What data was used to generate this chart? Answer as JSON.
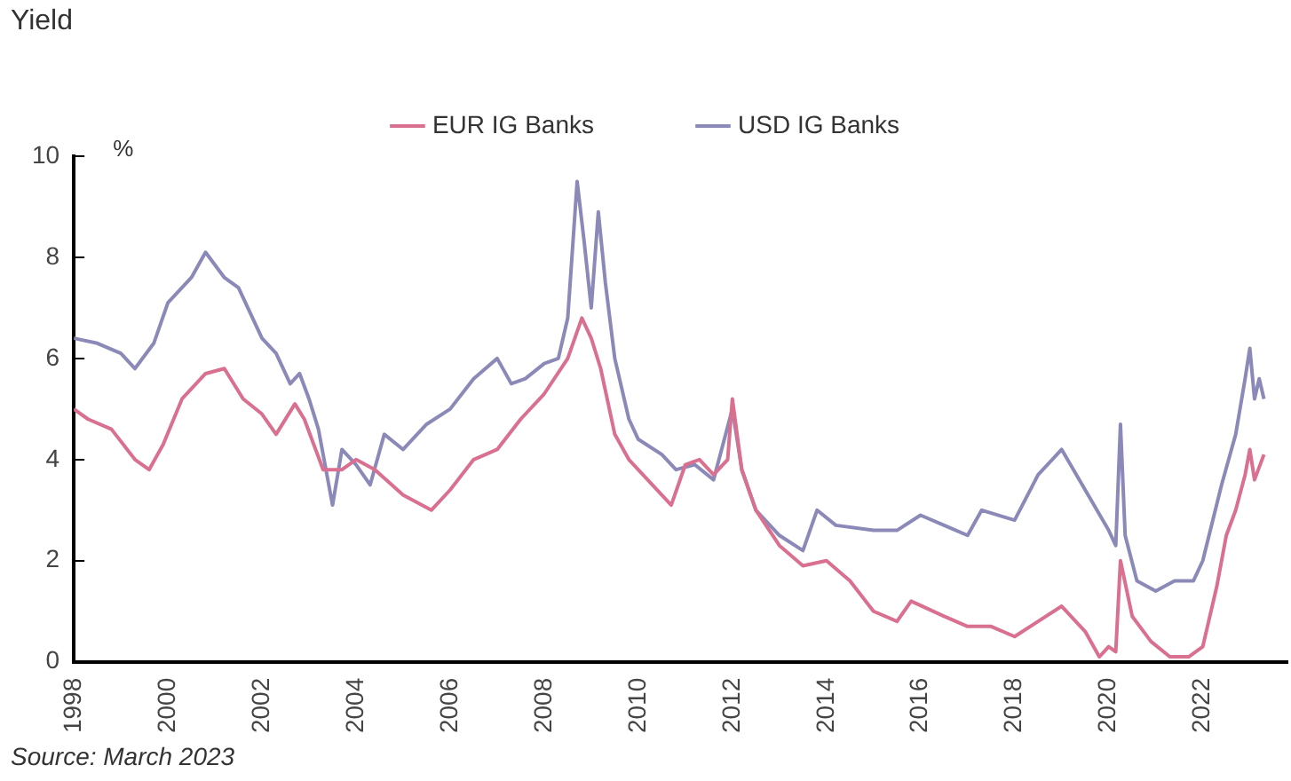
{
  "chart_data": {
    "type": "line",
    "ylabel": "Yield",
    "annotations": [
      "%",
      "Source: March 2023"
    ],
    "xlim": [
      1998,
      2023.8
    ],
    "xticks": [
      1998,
      2000,
      2002,
      2004,
      2006,
      2008,
      2010,
      2012,
      2014,
      2016,
      2018,
      2020,
      2022
    ],
    "ylim": [
      0,
      10
    ],
    "yticks": [
      0,
      2,
      4,
      6,
      8,
      10
    ],
    "grid": false,
    "legend": "top",
    "marker": "none",
    "line_style": "solid",
    "series": [
      {
        "name": "EUR IG Banks",
        "color": "#d9708f",
        "x": [
          1998.0,
          1998.3,
          1998.8,
          1999.3,
          1999.6,
          1999.9,
          2000.3,
          2000.8,
          2001.2,
          2001.6,
          2002.0,
          2002.3,
          2002.7,
          2002.9,
          2003.3,
          2003.7,
          2004.0,
          2004.4,
          2005.0,
          2005.6,
          2006.0,
          2006.5,
          2007.0,
          2007.5,
          2008.0,
          2008.5,
          2008.8,
          2009.0,
          2009.2,
          2009.5,
          2009.8,
          2010.3,
          2010.7,
          2011.0,
          2011.3,
          2011.6,
          2011.9,
          2012.0,
          2012.2,
          2012.5,
          2013.0,
          2013.5,
          2014.0,
          2014.5,
          2015.0,
          2015.5,
          2015.8,
          2016.5,
          2017.0,
          2017.5,
          2018.0,
          2018.5,
          2019.0,
          2019.5,
          2019.8,
          2020.0,
          2020.15,
          2020.25,
          2020.5,
          2020.9,
          2021.3,
          2021.7,
          2022.0,
          2022.3,
          2022.5,
          2022.7,
          2022.9,
          2023.0,
          2023.1,
          2023.3
        ],
        "values": [
          5.0,
          4.8,
          4.6,
          4.0,
          3.8,
          4.3,
          5.2,
          5.7,
          5.8,
          5.2,
          4.9,
          4.5,
          5.1,
          4.8,
          3.8,
          3.8,
          4.0,
          3.8,
          3.3,
          3.0,
          3.4,
          4.0,
          4.2,
          4.8,
          5.3,
          6.0,
          6.8,
          6.4,
          5.8,
          4.5,
          4.0,
          3.5,
          3.1,
          3.9,
          4.0,
          3.7,
          4.0,
          5.2,
          3.8,
          3.0,
          2.3,
          1.9,
          2.0,
          1.6,
          1.0,
          0.8,
          1.2,
          0.9,
          0.7,
          0.7,
          0.5,
          0.8,
          1.1,
          0.6,
          0.1,
          0.3,
          0.2,
          2.0,
          0.9,
          0.4,
          0.1,
          0.1,
          0.3,
          1.5,
          2.5,
          3.0,
          3.7,
          4.2,
          3.6,
          4.1
        ]
      },
      {
        "name": "USD IG Banks",
        "color": "#8b89b8",
        "x": [
          1998.0,
          1998.5,
          1999.0,
          1999.3,
          1999.7,
          2000.0,
          2000.5,
          2000.8,
          2001.2,
          2001.5,
          2002.0,
          2002.3,
          2002.6,
          2002.8,
          2003.0,
          2003.2,
          2003.5,
          2003.7,
          2004.0,
          2004.3,
          2004.6,
          2005.0,
          2005.5,
          2006.0,
          2006.5,
          2007.0,
          2007.3,
          2007.6,
          2008.0,
          2008.3,
          2008.5,
          2008.7,
          2008.85,
          2009.0,
          2009.15,
          2009.3,
          2009.5,
          2009.8,
          2010.0,
          2010.5,
          2010.8,
          2011.2,
          2011.6,
          2012.0,
          2012.2,
          2012.5,
          2013.0,
          2013.5,
          2013.8,
          2014.2,
          2015.0,
          2015.5,
          2016.0,
          2016.5,
          2017.0,
          2017.3,
          2018.0,
          2018.5,
          2019.0,
          2019.5,
          2020.0,
          2020.15,
          2020.25,
          2020.35,
          2020.6,
          2021.0,
          2021.4,
          2021.8,
          2022.0,
          2022.4,
          2022.7,
          2022.9,
          2023.0,
          2023.1,
          2023.2,
          2023.3
        ],
        "values": [
          6.4,
          6.3,
          6.1,
          5.8,
          6.3,
          7.1,
          7.6,
          8.1,
          7.6,
          7.4,
          6.4,
          6.1,
          5.5,
          5.7,
          5.2,
          4.6,
          3.1,
          4.2,
          3.9,
          3.5,
          4.5,
          4.2,
          4.7,
          5.0,
          5.6,
          6.0,
          5.5,
          5.6,
          5.9,
          6.0,
          6.8,
          9.5,
          8.3,
          7.0,
          8.9,
          7.5,
          6.0,
          4.8,
          4.4,
          4.1,
          3.8,
          3.9,
          3.6,
          5.0,
          3.8,
          3.0,
          2.5,
          2.2,
          3.0,
          2.7,
          2.6,
          2.6,
          2.9,
          2.7,
          2.5,
          3.0,
          2.8,
          3.7,
          4.2,
          3.4,
          2.6,
          2.3,
          4.7,
          2.5,
          1.6,
          1.4,
          1.6,
          1.6,
          2.0,
          3.5,
          4.5,
          5.6,
          6.2,
          5.2,
          5.6,
          5.2
        ]
      }
    ]
  }
}
